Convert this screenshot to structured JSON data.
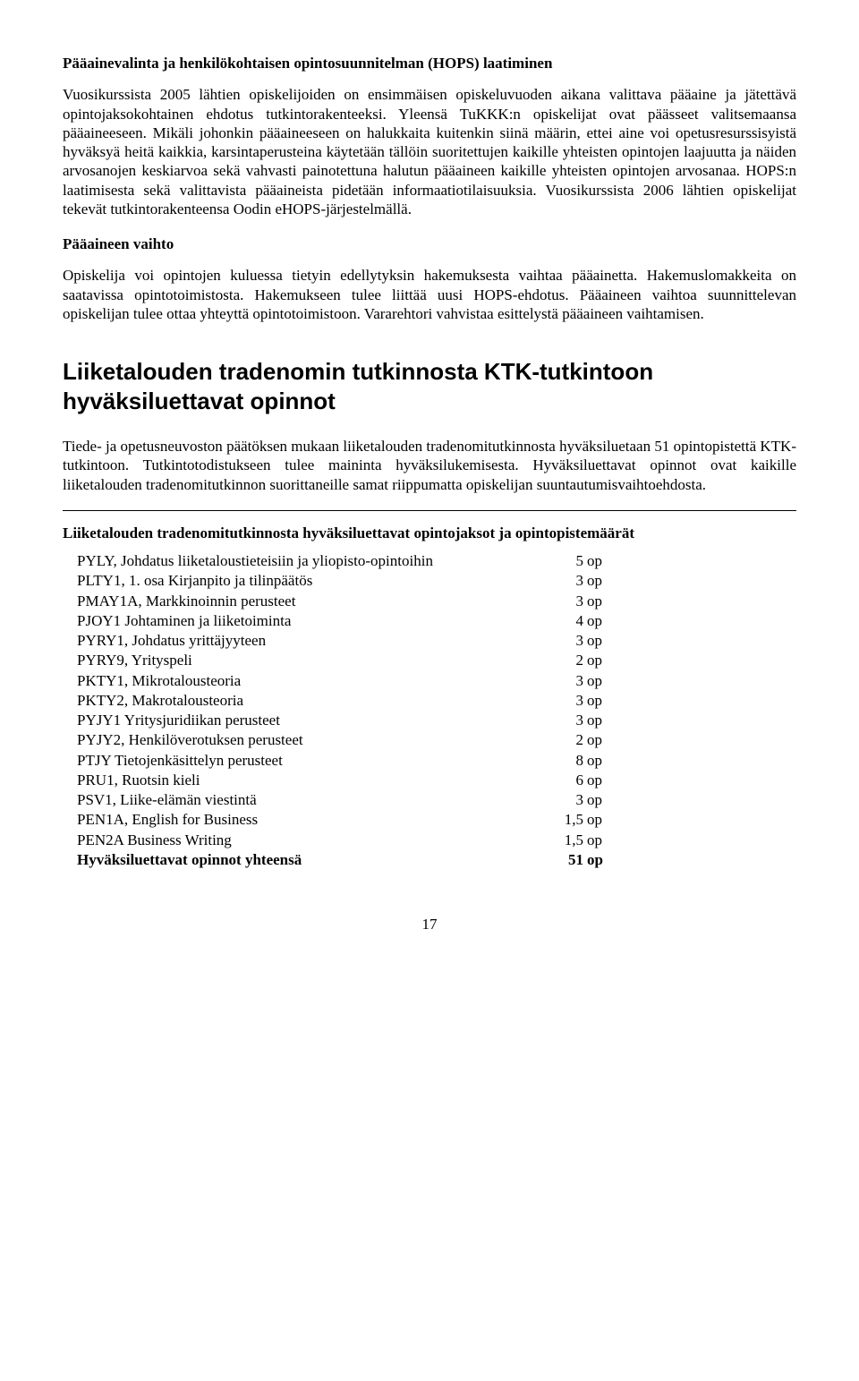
{
  "h1": "Pääainevalinta ja henkilökohtaisen opintosuunnitelman (HOPS) laatiminen",
  "p1": "Vuosikurssista 2005 lähtien opiskelijoiden on ensimmäisen opiskeluvuoden aikana valittava pääaine ja jätettävä opintojaksokohtainen ehdotus tutkintorakenteeksi. Yleensä TuKKK:n opiskelijat ovat päässeet valitsemaansa pääaineeseen. Mikäli johonkin pääaineeseen on halukkaita kuitenkin siinä määrin, ettei aine voi opetusresurssisyistä hyväksyä heitä kaikkia, karsintaperusteina käytetään tällöin suoritettujen kaikille yhteisten opintojen laajuutta ja näiden arvosanojen keskiarvoa sekä vahvasti painotettuna halutun pääaineen kaikille yhteisten opintojen arvosanaa. HOPS:n laatimisesta sekä valittavista pääaineista pidetään informaatiotilaisuuksia. Vuosikurssista 2006 lähtien opiskelijat tekevät tutkintorakenteensa Oodin eHOPS-järjestelmällä.",
  "h2": "Pääaineen vaihto",
  "p2": "Opiskelija voi opintojen kuluessa tietyin edellytyksin hakemuksesta vaihtaa pääainetta. Hakemuslomakkeita on saatavissa opintotoimistosta. Hakemukseen tulee liittää uusi HOPS-ehdotus. Pääaineen vaihtoa suunnittelevan opiskelijan tulee ottaa yhteyttä opintotoimistoon. Vararehtori vahvistaa esittelystä pääaineen vaihtamisen.",
  "h3": "Liiketalouden tradenomin tutkinnosta KTK-tutkintoon hyväksiluettavat opinnot",
  "p3": "Tiede- ja opetusneuvoston päätöksen mukaan liiketalouden tradenomitutkinnosta hyväksiluetaan 51 opintopistettä KTK-tutkintoon. Tutkintotodistukseen tulee maininta hyväksilukemisesta. Hyväksiluettavat opinnot ovat kaikille liiketalouden tradenomitutkinnon suorittaneille samat riippumatta opiskelijan suuntautumisvaihtoehdosta.",
  "h4": "Liiketalouden tradenomitutkinnosta hyväksiluettavat opintojaksot ja opintopistemäärät",
  "courses": [
    {
      "name": "PYLY, Johdatus liiketaloustieteisiin ja yliopisto-opintoihin",
      "cr": "5",
      "u": "op"
    },
    {
      "name": "PLTY1, 1. osa Kirjanpito ja tilinpäätös",
      "cr": "3",
      "u": "op"
    },
    {
      "name": "PMAY1A, Markkinoinnin perusteet",
      "cr": "3",
      "u": "op"
    },
    {
      "name": "PJOY1 Johtaminen ja liiketoiminta",
      "cr": "4",
      "u": "op"
    },
    {
      "name": "PYRY1, Johdatus yrittäjyyteen",
      "cr": "3",
      "u": "op"
    },
    {
      "name": "PYRY9, Yrityspeli",
      "cr": "2",
      "u": "op"
    },
    {
      "name": "PKTY1, Mikrotalousteoria",
      "cr": "3",
      "u": "op"
    },
    {
      "name": "PKTY2, Makrotalousteoria",
      "cr": "3",
      "u": "op"
    },
    {
      "name": "PYJY1 Yritysjuridiikan perusteet",
      "cr": "3",
      "u": "op"
    },
    {
      "name": "PYJY2, Henkilöverotuksen perusteet",
      "cr": "2",
      "u": "op"
    },
    {
      "name": "PTJY Tietojenkäsittelyn perusteet",
      "cr": "8",
      "u": "op"
    },
    {
      "name": "PRU1, Ruotsin kieli",
      "cr": "6",
      "u": "op"
    },
    {
      "name": "PSV1, Liike-elämän viestintä",
      "cr": "3",
      "u": "op"
    },
    {
      "name": "PEN1A, English for Business",
      "cr": "1,5",
      "u": "op"
    },
    {
      "name": "PEN2A Business Writing",
      "cr": "1,5",
      "u": "op"
    }
  ],
  "total": {
    "name": "Hyväksiluettavat opinnot yhteensä",
    "cr": "51",
    "u": "op"
  },
  "pagenum": "17"
}
